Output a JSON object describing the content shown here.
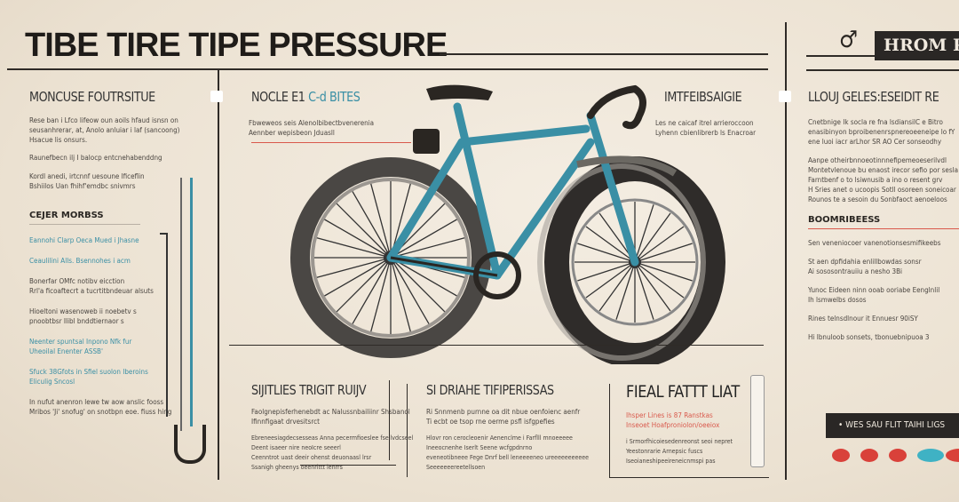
{
  "title": "TIBE TIRE TIPE PRESSURE",
  "top_right": {
    "icon": "male-symbol-icon",
    "banner": "HROM P"
  },
  "left": {
    "heading": "MONCUSE FOUTRSITUE",
    "para1": [
      "Rese ban i Lfco lifeow oun aoils hfaud isnsn on",
      "seusanhrerar, at, Anolo anluiar i laf (sancoong)",
      "Hsacue lis onsurs."
    ],
    "para2": [
      "Raunefbecn ilj I balocp entcnehabenddng"
    ],
    "para3": [
      "Kordl anedi, irtcnnf uesoune lficeflin",
      "Bshiilos Uan fhihf'emdbc snivmrs"
    ],
    "subheading": "CEJER MORBSS",
    "items": [
      {
        "lines": [
          "Eannohi Clarp Oeca Mued i Jhasne"
        ],
        "color": "#3a8fa5"
      },
      {
        "lines": [
          "Ceaulilini Alls. Bsennohes i acm"
        ],
        "color": "#3a8fa5"
      },
      {
        "lines": [
          "Bonerfar OMfc notibv eicction",
          "Rrl'a ficoaftecrt a tucrtitbndeuar alsuts"
        ],
        "color": "#4a4540"
      },
      {
        "lines": [
          "Hioeltoni wasenoweb ii noebetv s",
          "pnoobtbsr Ilibl bnddtiernaor s"
        ],
        "color": "#4a4540"
      },
      {
        "lines": [
          "Neenter spuntsal Inpono Nfk fur",
          "Uheoilal Enenter ASSB'"
        ],
        "color": "#3a8fa5"
      },
      {
        "lines": [
          "Sfuck 38Gfots in Sfiel suolon Iberoins",
          "Eliculig Sncosl"
        ],
        "color": "#3a8fa5"
      },
      {
        "lines": [
          "In nufut anenron lewe tw aow anslic fooss",
          "Mribos 'Ji' snofug' on snotbpn eoe. fiuss hing"
        ],
        "color": "#4a4540"
      }
    ]
  },
  "center": {
    "heading_a": "NOCLE E1",
    "heading_b": "C-d BITES",
    "body": [
      "Fbweweos seis Alenolbibectbvenerenia",
      "Aennber wepisbeon Jduasll"
    ],
    "side_heading": "IMTFEIBSAIGIE",
    "side_body": [
      "Les ne caicaf itrel arrieroccoon",
      "Lyhenn cbienlibrerb ls Enacroar"
    ]
  },
  "right": {
    "heading": "LLOUJ GELES:ESEIDIT RE",
    "para1": [
      "Cnetbnige Ik socla re fna lsdiansilC e Bitro",
      "enasibinyon bproibenenrspnereoeeneipe lo fY",
      "ene luoi iacr arLhor SR AO Cer sonseodhy"
    ],
    "para2": [
      "Aanpe otheirbnnoeotinnnefipemeoeserilvdl",
      "Montetvlenoue bu enaost irecor sefio por sesla",
      "Farntbenf o to lsiwnusib a ino o resent grv",
      "H Sries anet o ucoopis Sotll osoreen soneicoar",
      "Rounos te a sesoin du Sonbfaoct aenoeloos"
    ],
    "subheading": "BOOMRIBEESS",
    "items": [
      [
        "Sen veneniocoer vanenotionsesmifikeebs"
      ],
      [
        "St aen dpfidahia enlillbowdas sonsr",
        "Ai sososontrauiiu a nesho 3Bi"
      ],
      [
        "Yunoc Eideen ninn ooab ooriabe Eenglnlil",
        "Ih lsmwelbs dosos"
      ],
      [
        "Rines telnsdlnour it Ennuesr 90iSY"
      ],
      [
        "Hi Ibnuloob sonsets, tbonuebnipuoa 3"
      ]
    ],
    "banner": "• WES SAU FLIT TAIHI LIGS",
    "dot_colors": [
      "#d9413a",
      "#d9413a",
      "#d9413a",
      "#3fb2c4",
      "#d9413a"
    ]
  },
  "bottom": [
    {
      "heading": "SIJITLIES TRIGIT RUIJV",
      "lead": [
        "Faolgnepisferhenebdt ac Nalussnbailiinr Shsbanol",
        "Ifinnfigaat drvesitsrct"
      ],
      "body": [
        "Ebreneesiagdecsesseas Anna pecermfioeslee fsellvdcseel",
        "Deent isaeer nire neoIcre seeerl",
        "Ceenntrot uast deeir ohenst deuonaasl lrsr",
        "Ssanigh gheenys oeenrittt lenrrs"
      ]
    },
    {
      "heading": "SI DRIAHE TIFIPERISSAS",
      "lead": [
        "Ri Snnmenb purnne oa dit nbue oenfoienc aenfr",
        "Ti ecbt oe tsop rne oerme psfl isfgpefies"
      ],
      "body": [
        "Hlovr ron cerocleoenir Aenenclme i Farflll mnoeeeee",
        "Ineeocnenhe Iserlt Seene wcfgpdnrno",
        "eveneotibneee Fege Dnrf bell leneeeeneo ureeeeeeeeeee",
        "Seeeeeeereetellsoen"
      ]
    },
    {
      "heading": "FIEAL FATTT LIAT",
      "lead": [
        "Ihsper Lines is 87 Ranstkas",
        "Inseoet Hoafproniolon/oeeiox"
      ],
      "body": [
        "i Srmorfhicoiesedenreonst seoi nepret",
        "Yeestonrarie Arnepsic fuscs",
        "Iseoianeshipeeireneicnmspi pas"
      ]
    }
  ],
  "colors": {
    "accent_teal": "#3a8fa5",
    "accent_red": "#d9594c",
    "ink": "#2f2b27",
    "paper": "#ede3d3"
  }
}
